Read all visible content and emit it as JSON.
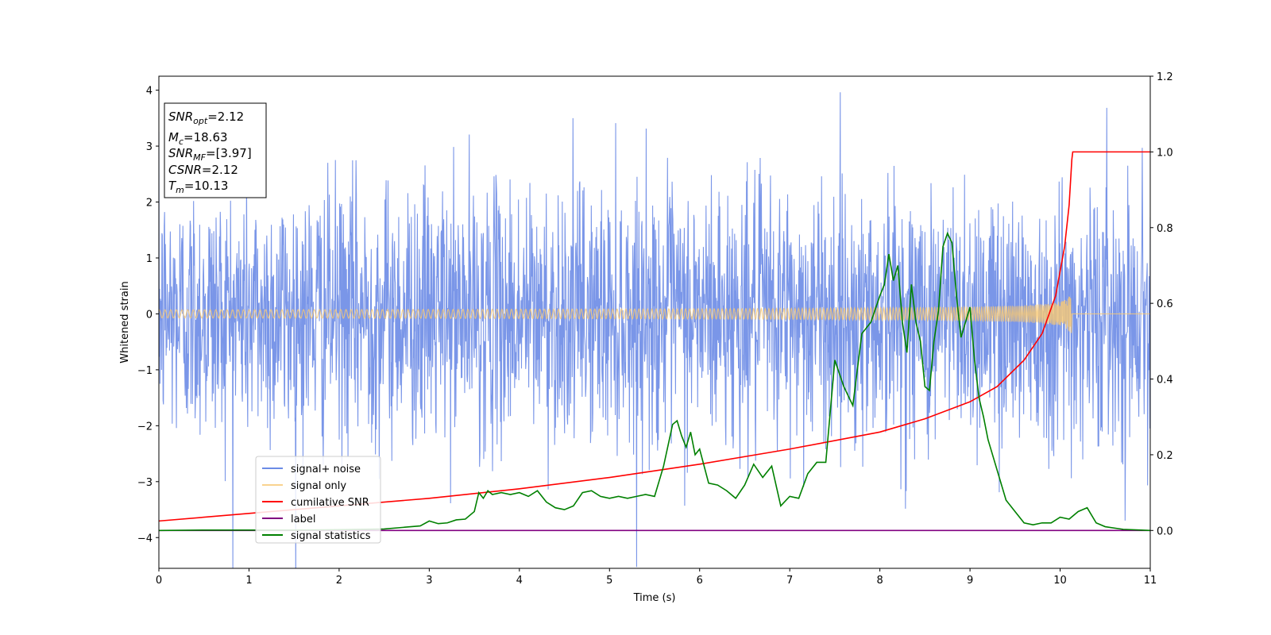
{
  "chart_data": {
    "type": "line",
    "xlabel": "Time (s)",
    "ylabel": "Whitened strain",
    "xlim": [
      0,
      11
    ],
    "ylim_left": [
      -4.55,
      4.25
    ],
    "ylim_right": [
      -0.1,
      1.2
    ],
    "x_ticks": [
      0,
      1,
      2,
      3,
      4,
      5,
      6,
      7,
      8,
      9,
      10,
      11
    ],
    "y_ticks_left": [
      -4,
      -3,
      -2,
      -1,
      0,
      1,
      2,
      3,
      4
    ],
    "y_ticks_right": [
      0.0,
      0.2,
      0.4,
      0.6,
      0.8,
      1.0,
      1.2
    ],
    "grid": false,
    "legend_position": "lower-left",
    "info_box": {
      "snr_opt": {
        "main": "SNR",
        "sub": "opt",
        "rest": "=2.12"
      },
      "mc": {
        "main": "M",
        "sub": "c",
        "rest": "=18.63"
      },
      "snr_mf": {
        "main": "SNR",
        "sub": "MF",
        "rest": "=[3.97]"
      },
      "csnr": {
        "main": "CSNR",
        "sub": "",
        "rest": "=2.12"
      },
      "tm": {
        "main": "T",
        "sub": "m",
        "rest": "=10.13"
      }
    },
    "series": [
      {
        "name": "signal+ noise",
        "color": "#6b8be6",
        "axis": "left",
        "kind": "noise",
        "sigma": 1.0
      },
      {
        "name": "signal only",
        "color": "#f7c873",
        "axis": "left",
        "kind": "chirp",
        "merger_time": 10.13,
        "peak_amplitude": 0.35
      },
      {
        "name": "cumilative SNR",
        "color": "#ff0000",
        "axis": "right",
        "x": [
          0,
          1,
          2,
          3,
          4,
          5,
          6,
          7,
          8,
          8.5,
          9,
          9.3,
          9.6,
          9.8,
          9.95,
          10.05,
          10.1,
          10.13,
          10.14,
          11
        ],
        "y": [
          0.025,
          0.045,
          0.065,
          0.085,
          0.11,
          0.14,
          0.175,
          0.215,
          0.26,
          0.295,
          0.34,
          0.38,
          0.45,
          0.52,
          0.62,
          0.75,
          0.86,
          0.98,
          1.0,
          1.0
        ]
      },
      {
        "name": "label",
        "color": "#800080",
        "axis": "right",
        "x": [
          0,
          11
        ],
        "y": [
          0.0,
          0.0
        ]
      },
      {
        "name": "signal statistics",
        "color": "#008000",
        "axis": "right",
        "x": [
          0,
          0.5,
          1,
          1.5,
          2,
          2.5,
          2.7,
          2.9,
          3.0,
          3.1,
          3.2,
          3.3,
          3.4,
          3.5,
          3.55,
          3.6,
          3.65,
          3.7,
          3.8,
          3.9,
          4.0,
          4.1,
          4.2,
          4.3,
          4.4,
          4.5,
          4.6,
          4.7,
          4.8,
          4.9,
          5.0,
          5.1,
          5.2,
          5.3,
          5.4,
          5.5,
          5.6,
          5.7,
          5.75,
          5.8,
          5.85,
          5.9,
          5.95,
          6.0,
          6.1,
          6.2,
          6.3,
          6.4,
          6.5,
          6.6,
          6.7,
          6.8,
          6.9,
          7.0,
          7.1,
          7.2,
          7.3,
          7.4,
          7.5,
          7.6,
          7.7,
          7.8,
          7.9,
          8.0,
          8.05,
          8.1,
          8.15,
          8.2,
          8.25,
          8.3,
          8.35,
          8.4,
          8.45,
          8.5,
          8.55,
          8.6,
          8.65,
          8.7,
          8.75,
          8.8,
          8.85,
          8.9,
          8.95,
          9.0,
          9.05,
          9.1,
          9.15,
          9.2,
          9.3,
          9.4,
          9.5,
          9.6,
          9.7,
          9.8,
          9.9,
          10.0,
          10.1,
          10.2,
          10.3,
          10.4,
          10.5,
          10.7,
          10.9,
          11
        ],
        "y": [
          0.0,
          0.001,
          0.001,
          0.001,
          0.002,
          0.004,
          0.008,
          0.012,
          0.025,
          0.018,
          0.02,
          0.028,
          0.03,
          0.05,
          0.1,
          0.085,
          0.105,
          0.095,
          0.1,
          0.095,
          0.1,
          0.09,
          0.105,
          0.075,
          0.06,
          0.055,
          0.065,
          0.1,
          0.105,
          0.09,
          0.085,
          0.09,
          0.085,
          0.09,
          0.095,
          0.09,
          0.17,
          0.28,
          0.29,
          0.25,
          0.22,
          0.26,
          0.2,
          0.215,
          0.125,
          0.12,
          0.105,
          0.085,
          0.12,
          0.175,
          0.14,
          0.17,
          0.065,
          0.09,
          0.085,
          0.15,
          0.18,
          0.18,
          0.45,
          0.38,
          0.33,
          0.52,
          0.55,
          0.62,
          0.65,
          0.73,
          0.66,
          0.7,
          0.55,
          0.47,
          0.65,
          0.55,
          0.5,
          0.38,
          0.37,
          0.5,
          0.58,
          0.75,
          0.785,
          0.76,
          0.62,
          0.51,
          0.55,
          0.59,
          0.45,
          0.35,
          0.3,
          0.24,
          0.16,
          0.08,
          0.05,
          0.02,
          0.015,
          0.02,
          0.02,
          0.035,
          0.03,
          0.05,
          0.06,
          0.02,
          0.01,
          0.003,
          0.001,
          0.0
        ]
      }
    ]
  }
}
